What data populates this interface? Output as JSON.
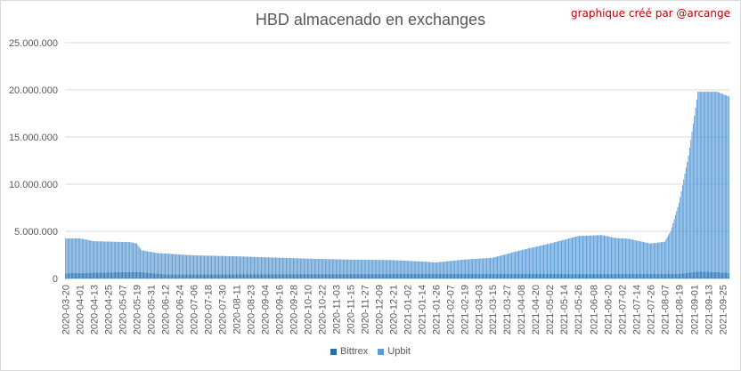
{
  "chart_data": {
    "type": "bar",
    "stacked": true,
    "title": "HBD almacenado en exchanges",
    "xlabel": "",
    "ylabel": "",
    "ylim": [
      0,
      25000000
    ],
    "yticks": [
      0,
      5000000,
      10000000,
      15000000,
      20000000,
      25000000
    ],
    "ytick_labels": [
      "0",
      "5.000.000",
      "10.000.000",
      "15.000.000",
      "20.000.000",
      "25.000.000"
    ],
    "xtick_labels": [
      "2020-03-20",
      "2020-04-01",
      "2020-04-13",
      "2020-04-25",
      "2020-05-07",
      "2020-05-19",
      "2020-05-31",
      "2020-06-12",
      "2020-06-24",
      "2020-07-06",
      "2020-07-18",
      "2020-07-30",
      "2020-08-11",
      "2020-08-23",
      "2020-09-04",
      "2020-09-16",
      "2020-09-28",
      "2020-10-10",
      "2020-10-22",
      "2020-11-03",
      "2020-11-15",
      "2020-11-27",
      "2020-12-09",
      "2020-12-21",
      "2021-01-02",
      "2021-01-14",
      "2021-01-26",
      "2021-02-07",
      "2021-02-19",
      "2021-03-03",
      "2021-03-15",
      "2021-03-27",
      "2021-04-08",
      "2021-04-20",
      "2021-05-02",
      "2021-05-14",
      "2021-05-26",
      "2021-06-08",
      "2021-06-20",
      "2021-07-02",
      "2021-07-14",
      "2021-07-26",
      "2021-08-07",
      "2021-08-19",
      "2021-09-01",
      "2021-09-13",
      "2021-09-25"
    ],
    "total_profile": [
      [
        "2020-03-20",
        4250000
      ],
      [
        "2020-04-01",
        4250000
      ],
      [
        "2020-04-13",
        3950000
      ],
      [
        "2020-05-14",
        3850000
      ],
      [
        "2020-05-19",
        3700000
      ],
      [
        "2020-05-23",
        3000000
      ],
      [
        "2020-06-05",
        2700000
      ],
      [
        "2020-07-06",
        2450000
      ],
      [
        "2020-08-11",
        2350000
      ],
      [
        "2020-09-04",
        2250000
      ],
      [
        "2020-10-10",
        2100000
      ],
      [
        "2020-11-15",
        2000000
      ],
      [
        "2020-12-21",
        1950000
      ],
      [
        "2021-01-14",
        1800000
      ],
      [
        "2021-01-26",
        1700000
      ],
      [
        "2021-02-19",
        2000000
      ],
      [
        "2021-03-15",
        2200000
      ],
      [
        "2021-04-08",
        3000000
      ],
      [
        "2021-05-02",
        3700000
      ],
      [
        "2021-05-26",
        4500000
      ],
      [
        "2021-06-15",
        4600000
      ],
      [
        "2021-06-26",
        4300000
      ],
      [
        "2021-07-08",
        4200000
      ],
      [
        "2021-07-26",
        3700000
      ],
      [
        "2021-08-07",
        3900000
      ],
      [
        "2021-08-12",
        5000000
      ],
      [
        "2021-08-19",
        8000000
      ],
      [
        "2021-08-27",
        13000000
      ],
      [
        "2021-09-04",
        19800000
      ],
      [
        "2021-09-20",
        19800000
      ],
      [
        "2021-09-30",
        19300000
      ]
    ],
    "bittrex_profile": [
      [
        "2020-03-20",
        550000
      ],
      [
        "2020-05-19",
        700000
      ],
      [
        "2020-06-12",
        450000
      ],
      [
        "2021-05-02",
        480000
      ],
      [
        "2021-08-19",
        500000
      ],
      [
        "2021-09-05",
        750000
      ],
      [
        "2021-09-30",
        600000
      ]
    ],
    "series": [
      {
        "name": "Bittrex",
        "color": "#1f6fb4"
      },
      {
        "name": "Upbit",
        "color": "#5b9bd5"
      }
    ]
  },
  "credit": "graphique créé par @arcange"
}
